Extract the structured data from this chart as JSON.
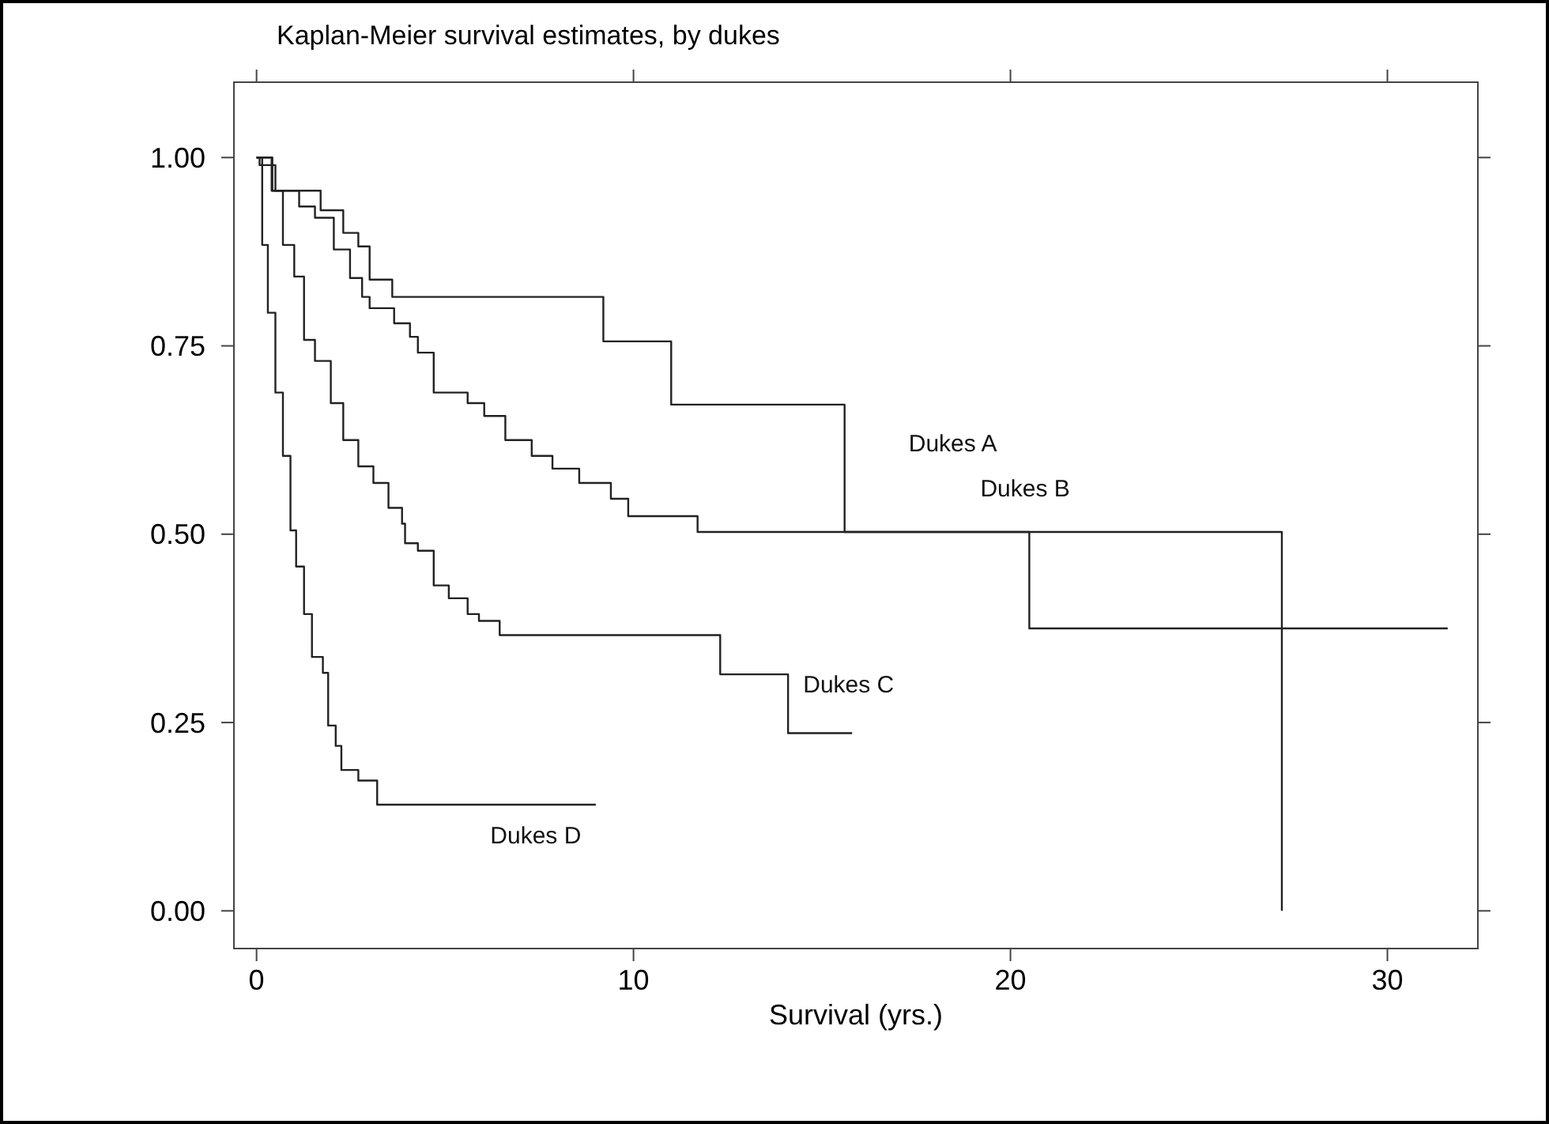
{
  "chart_data": {
    "type": "step",
    "title": "Kaplan-Meier survival estimates, by dukes",
    "xlabel": "Survival (yrs.)",
    "xlim": [
      -0.6,
      32.4
    ],
    "ylim": [
      -0.05,
      1.1
    ],
    "xticks": [
      0,
      10,
      20,
      30
    ],
    "yticks": [
      {
        "value": 0,
        "label": "0.00"
      },
      {
        "value": 0.25,
        "label": "0.25"
      },
      {
        "value": 0.5,
        "label": "0.50"
      },
      {
        "value": 0.75,
        "label": "0.75"
      },
      {
        "value": 1,
        "label": "1.00"
      }
    ],
    "grid": false,
    "marker": "none",
    "line_style": "solid",
    "series": [
      {
        "name": "Dukes A",
        "color": "#222222",
        "x": [
          0,
          0.4,
          1.7,
          2.3,
          2.7,
          3.0,
          3.6,
          9.2,
          11.0,
          15.6,
          27.2
        ],
        "values": [
          1.0,
          0.956,
          0.93,
          0.9,
          0.882,
          0.838,
          0.815,
          0.756,
          0.672,
          0.503,
          0
        ]
      },
      {
        "name": "Dukes B",
        "color": "#222222",
        "x": [
          0,
          0.42,
          1.13,
          1.55,
          2.05,
          2.48,
          2.8,
          3.0,
          3.65,
          4.07,
          4.28,
          4.7,
          5.6,
          6.04,
          6.6,
          7.3,
          7.85,
          8.56,
          9.4,
          9.86,
          11.7,
          20.5,
          31.6
        ],
        "values": [
          1.0,
          0.956,
          0.935,
          0.92,
          0.878,
          0.84,
          0.815,
          0.8,
          0.78,
          0.762,
          0.741,
          0.688,
          0.674,
          0.657,
          0.625,
          0.604,
          0.587,
          0.568,
          0.547,
          0.524,
          0.503,
          0.375,
          0.375
        ]
      },
      {
        "name": "Dukes C",
        "color": "#222222",
        "x": [
          0,
          0.08,
          0.5,
          0.7,
          1.0,
          1.26,
          1.55,
          1.97,
          2.3,
          2.7,
          3.1,
          3.5,
          3.86,
          3.94,
          4.28,
          4.7,
          5.1,
          5.6,
          5.9,
          6.45,
          12.3,
          14.1,
          15.8
        ],
        "values": [
          1.0,
          0.99,
          0.956,
          0.884,
          0.842,
          0.758,
          0.73,
          0.674,
          0.625,
          0.59,
          0.568,
          0.535,
          0.514,
          0.488,
          0.478,
          0.432,
          0.415,
          0.394,
          0.385,
          0.366,
          0.314,
          0.236,
          0.236
        ]
      },
      {
        "name": "Dukes D",
        "color": "#222222",
        "x": [
          0,
          0.15,
          0.3,
          0.5,
          0.7,
          0.9,
          1.05,
          1.26,
          1.47,
          1.76,
          1.9,
          2.1,
          2.25,
          2.7,
          3.2,
          9.0
        ],
        "values": [
          1.0,
          0.884,
          0.794,
          0.688,
          0.604,
          0.505,
          0.457,
          0.394,
          0.337,
          0.316,
          0.246,
          0.219,
          0.187,
          0.173,
          0.141,
          0.141
        ]
      }
    ]
  }
}
